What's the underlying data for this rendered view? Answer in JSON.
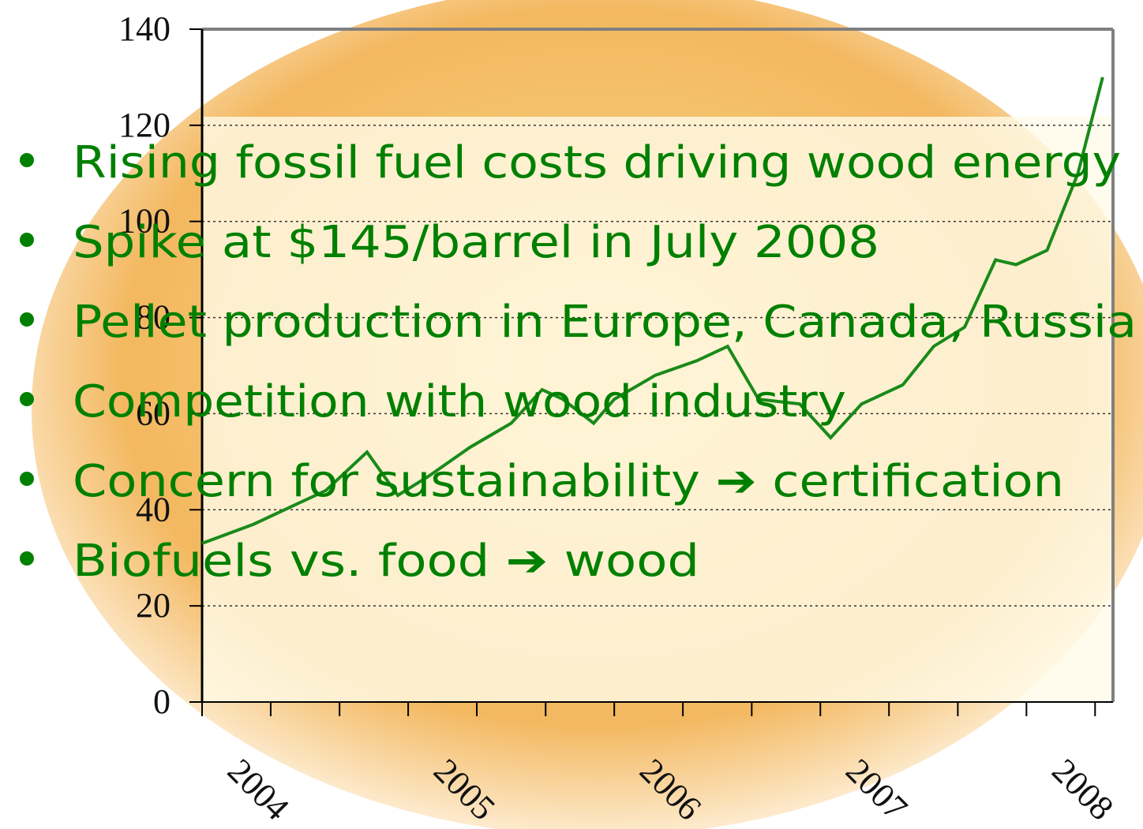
{
  "chart_data": {
    "type": "line",
    "x": [
      2004.0,
      2004.25,
      2004.4,
      2004.6,
      2004.8,
      2004.95,
      2005.1,
      2005.3,
      2005.5,
      2005.65,
      2005.75,
      2005.9,
      2006.0,
      2006.2,
      2006.4,
      2006.55,
      2006.7,
      2006.9,
      2007.05,
      2007.2,
      2007.4,
      2007.55,
      2007.7,
      2007.85,
      2007.95,
      2008.1,
      2008.25,
      2008.37
    ],
    "series": [
      {
        "color": "#1a8a1a",
        "values": [
          33,
          37,
          40,
          44,
          52,
          43,
          47,
          53,
          58,
          65,
          63,
          58,
          63,
          68,
          71,
          74,
          63,
          62,
          55,
          62,
          66,
          74,
          78,
          92,
          91,
          94,
          110,
          130
        ]
      }
    ],
    "xlim": [
      2004.0,
      2008.42
    ],
    "xticks": [
      2004,
      2005,
      2006,
      2007,
      2008
    ],
    "xminorticks": [
      2004.333,
      2004.667,
      2005.333,
      2005.667,
      2006.333,
      2006.667,
      2007.333,
      2007.667,
      2008.333
    ],
    "ylim": [
      0,
      140
    ],
    "yticks": [
      0,
      20,
      40,
      60,
      80,
      100,
      120,
      140
    ],
    "grid": true
  },
  "bullets": [
    "Rising fossil fuel costs driving wood energy",
    "Spike at $145/barrel in July 2008",
    "Pellet production in Europe, Canada, Russia",
    "Competition with wood industry",
    "Concern for sustainability ➔ certification",
    "Biofuels vs. food ➔ wood"
  ]
}
